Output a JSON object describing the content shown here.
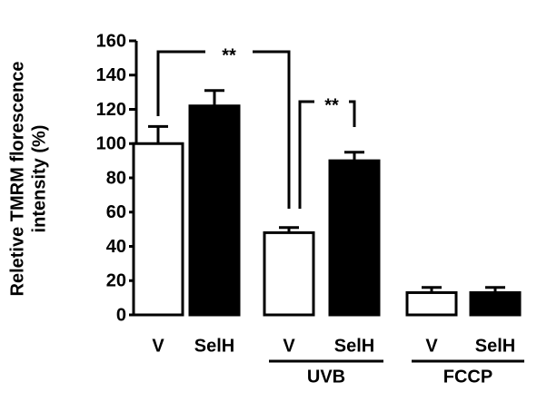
{
  "chart_data": {
    "type": "bar",
    "y_label": [
      "Reletive TMRM florescence",
      "intensity (%)"
    ],
    "categories": [
      "V",
      "SelH",
      "V",
      "SelH",
      "V",
      "SelH"
    ],
    "values": [
      100,
      122,
      48,
      90,
      13,
      13
    ],
    "errors": [
      10,
      9,
      3,
      5,
      3,
      3
    ],
    "colors": [
      "#ffffff",
      "#000000",
      "#ffffff",
      "#000000",
      "#ffffff",
      "#000000"
    ],
    "groups": [
      null,
      "UVB",
      "FCCP"
    ],
    "annotations": [
      "**",
      "**"
    ],
    "ylim": [
      0,
      160
    ],
    "yticks": [
      0,
      20,
      40,
      60,
      80,
      100,
      120,
      140,
      160
    ]
  }
}
